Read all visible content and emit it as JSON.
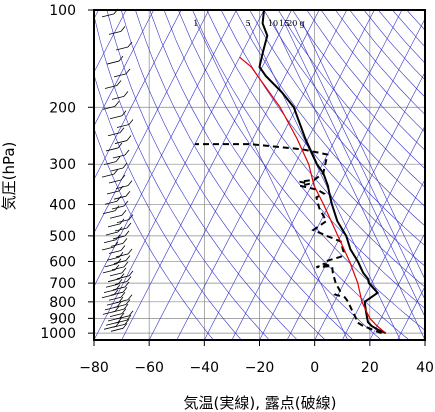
{
  "chart_data": {
    "type": "skew-t log-p sounding",
    "xlabel": "気温(実線), 露点(破線)",
    "ylabel": "気圧(hPa)",
    "xlim": [
      -80,
      40
    ],
    "ylim": [
      1050,
      100
    ],
    "y_scale": "log",
    "x_ticks": [
      "−80",
      "−60",
      "−40",
      "−20",
      "0",
      "20",
      "40"
    ],
    "y_ticks": [
      {
        "p": 100,
        "label": "100"
      },
      {
        "p": 200,
        "label": "200"
      },
      {
        "p": 300,
        "label": "300"
      },
      {
        "p": 400,
        "label": "400"
      },
      {
        "p": 500,
        "label": "500"
      },
      {
        "p": 600,
        "label": "600"
      },
      {
        "p": 700,
        "label": "700"
      },
      {
        "p": 800,
        "label": "800"
      },
      {
        "p": 900,
        "label": "900"
      },
      {
        "p": 1000,
        "label": "1000"
      }
    ],
    "mixing_ratio_labels": [
      {
        "text": "1",
        "x": -46
      },
      {
        "text": "5",
        "x": -27
      },
      {
        "text": "10",
        "x": -18
      },
      {
        "text": "15",
        "x": -14
      },
      {
        "text": "20",
        "x": -11
      },
      {
        "text": "g",
        "x": -7.5
      }
    ],
    "colors": {
      "temperature": "#000000",
      "dewpoint": "#000000",
      "parcel": "#e00000",
      "reference_lines": "#3333cc",
      "grid": "#888888"
    },
    "series": [
      {
        "style": "solid",
        "points": [
          [
            1000,
            24.5
          ],
          [
            975,
            21
          ],
          [
            950,
            18
          ],
          [
            925,
            16
          ],
          [
            900,
            15
          ],
          [
            850,
            13
          ],
          [
            800,
            11
          ],
          [
            750,
            14
          ],
          [
            700,
            9
          ],
          [
            680,
            8
          ],
          [
            650,
            5
          ],
          [
            600,
            1
          ],
          [
            550,
            -4
          ],
          [
            500,
            -8
          ],
          [
            450,
            -14
          ],
          [
            400,
            -19
          ],
          [
            370,
            -22
          ],
          [
            350,
            -24
          ],
          [
            320,
            -28
          ],
          [
            300,
            -32
          ],
          [
            250,
            -41
          ],
          [
            200,
            -51
          ],
          [
            180,
            -58
          ],
          [
            160,
            -67
          ],
          [
            150,
            -71
          ],
          [
            140,
            -72
          ],
          [
            130,
            -73
          ],
          [
            120,
            -74
          ],
          [
            110,
            -78
          ],
          [
            100,
            -80
          ]
        ]
      },
      {
        "style": "dashed",
        "points": [
          [
            1000,
            23
          ],
          [
            975,
            19
          ],
          [
            950,
            15
          ],
          [
            925,
            12
          ],
          [
            900,
            11
          ],
          [
            850,
            8
          ],
          [
            800,
            5
          ],
          [
            775,
            3
          ],
          [
            760,
            -1
          ],
          [
            740,
            0
          ],
          [
            700,
            -3
          ],
          [
            650,
            -6
          ],
          [
            620,
            -7.5
          ],
          [
            615,
            -11
          ],
          [
            625,
            -13
          ],
          [
            620,
            -8
          ],
          [
            610,
            -11
          ],
          [
            600,
            -11
          ],
          [
            580,
            -6
          ],
          [
            560,
            -6
          ],
          [
            520,
            -9
          ],
          [
            500,
            -15
          ],
          [
            480,
            -21
          ],
          [
            450,
            -18
          ],
          [
            410,
            -23
          ],
          [
            380,
            -26
          ],
          [
            370,
            -24
          ],
          [
            360,
            -27
          ],
          [
            350,
            -34
          ],
          [
            345,
            -31
          ],
          [
            340,
            -35
          ],
          [
            335,
            -30
          ],
          [
            320,
            -28
          ],
          [
            280,
            -30
          ],
          [
            270,
            -40
          ],
          [
            260,
            -60
          ],
          [
            260,
            -80
          ]
        ]
      },
      {
        "style": "solid-red",
        "points": [
          [
            1000,
            24.5
          ],
          [
            950,
            20
          ],
          [
            900,
            16
          ],
          [
            850,
            13
          ],
          [
            800,
            10
          ],
          [
            700,
            5
          ],
          [
            600,
            -2
          ],
          [
            500,
            -11
          ],
          [
            400,
            -22
          ],
          [
            350,
            -29
          ],
          [
            300,
            -35
          ],
          [
            250,
            -44
          ],
          [
            200,
            -56
          ],
          [
            150,
            -74
          ],
          [
            140,
            -80
          ]
        ]
      }
    ],
    "wind_barbs": "left-side column"
  }
}
